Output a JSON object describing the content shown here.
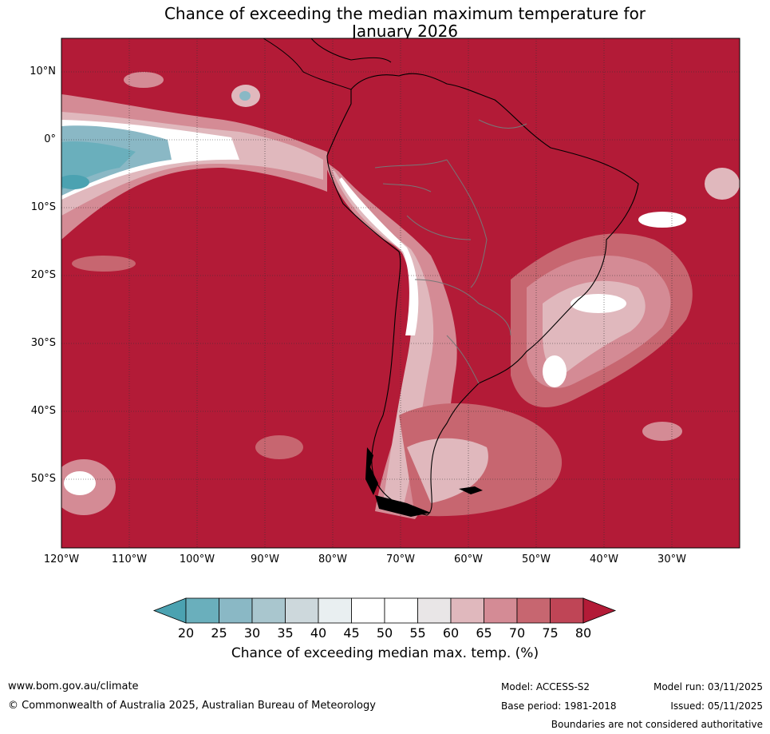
{
  "title_line1": "Chance of exceeding the median maximum temperature for",
  "title_line2": "January 2026",
  "lat_labels": [
    "10°N",
    "0°",
    "10°S",
    "20°S",
    "30°S",
    "40°S",
    "50°S"
  ],
  "lon_labels": [
    "120°W",
    "110°W",
    "100°W",
    "90°W",
    "80°W",
    "70°W",
    "60°W",
    "50°W",
    "40°W",
    "30°W"
  ],
  "colorbar": {
    "ticks": [
      "20",
      "25",
      "30",
      "35",
      "40",
      "45",
      "50",
      "55",
      "60",
      "65",
      "70",
      "75",
      "80"
    ],
    "label": "Chance of exceeding median max. temp. (%)",
    "colors": [
      "#4ba2b1",
      "#6aafbc",
      "#8ab8c5",
      "#a9c6ce",
      "#cdd8dc",
      "#e9eff1",
      "#ffffff",
      "#ffffff",
      "#e9e6e7",
      "#e0b8bd",
      "#d48b95",
      "#c76670",
      "#bf4556",
      "#b31b37"
    ]
  },
  "footer": {
    "website": "www.bom.gov.au/climate",
    "copyright": "© Commonwealth of Australia 2025, Australian Bureau of Meteorology",
    "model": "Model: ACCESS-S2",
    "base_period": "Base period: 1981-2018",
    "model_run": "Model run: 03/11/2025",
    "issued": "Issued: 05/11/2025",
    "disclaimer": "Boundaries are not considered authoritative"
  }
}
